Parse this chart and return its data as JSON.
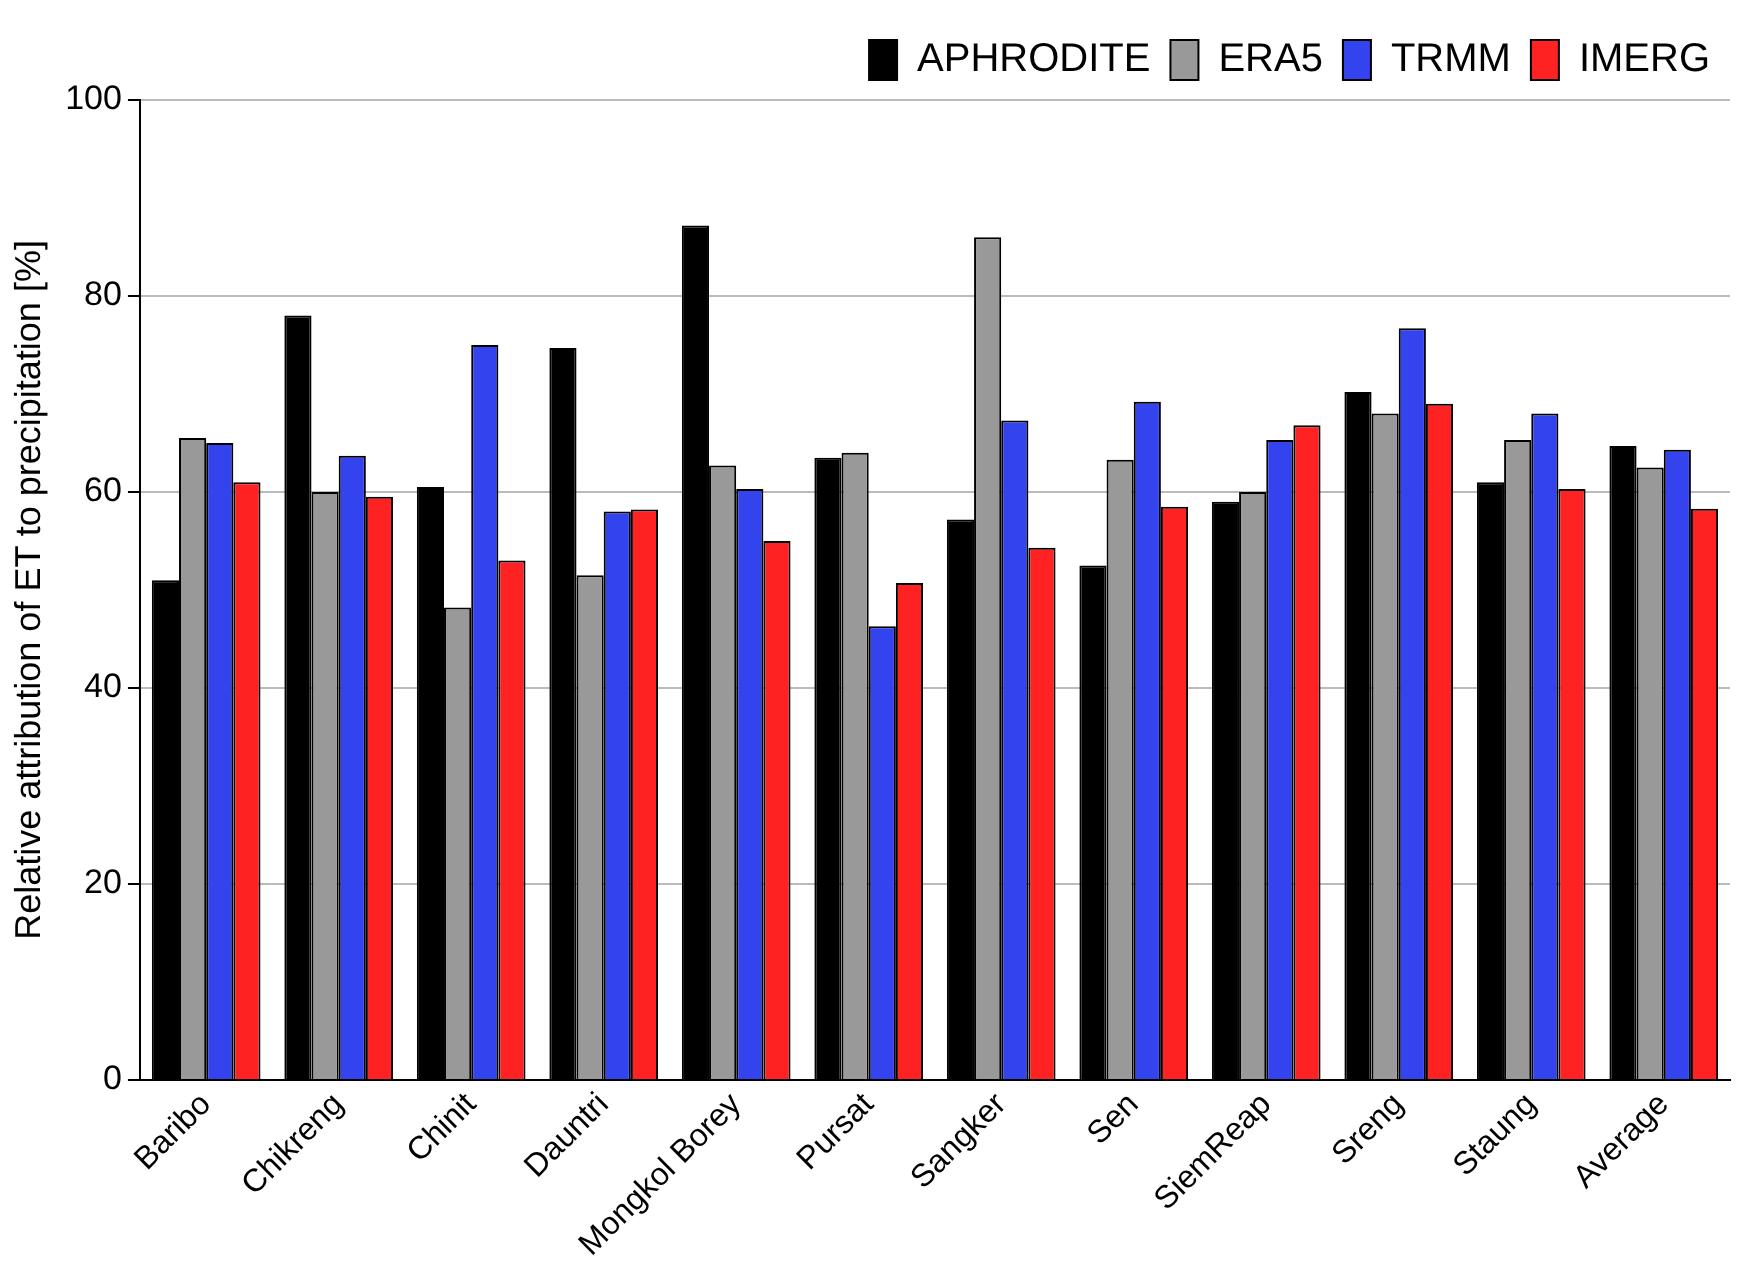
{
  "chart_data": {
    "type": "bar",
    "ylabel": "Relative attribution of ET to precipitation [%]",
    "categories": [
      "Baribo",
      "Chikreng",
      "Chinit",
      "Dauntri",
      "Mongkol Borey",
      "Pursat",
      "Sangker",
      "Sen",
      "SiemReap",
      "Sreng",
      "Staung",
      "Average"
    ],
    "series": [
      {
        "name": "APHRODITE",
        "color": "#000000",
        "values": [
          51,
          78,
          60.5,
          74.7,
          87.2,
          63.5,
          57.2,
          52.5,
          59,
          70.2,
          61,
          64.7
        ]
      },
      {
        "name": "ERA5",
        "color": "#999999",
        "values": [
          65.5,
          60,
          48.2,
          51.5,
          62.7,
          64,
          86,
          63.3,
          60,
          68,
          65.3,
          62.5
        ]
      },
      {
        "name": "TRMM",
        "color": "#3344ee",
        "values": [
          65,
          63.7,
          75,
          58,
          60.3,
          46.3,
          67.3,
          69.2,
          65.3,
          76.7,
          68,
          64.3
        ]
      },
      {
        "name": "IMERG",
        "color": "#ff2222",
        "values": [
          61,
          59.5,
          53,
          58.2,
          55,
          50.7,
          54.3,
          58.5,
          66.8,
          69,
          60.3,
          58.3
        ]
      }
    ],
    "ylim": [
      0,
      100
    ],
    "yticks": [
      0,
      20,
      40,
      60,
      80,
      100
    ],
    "grid": "y",
    "legend": "top right"
  }
}
